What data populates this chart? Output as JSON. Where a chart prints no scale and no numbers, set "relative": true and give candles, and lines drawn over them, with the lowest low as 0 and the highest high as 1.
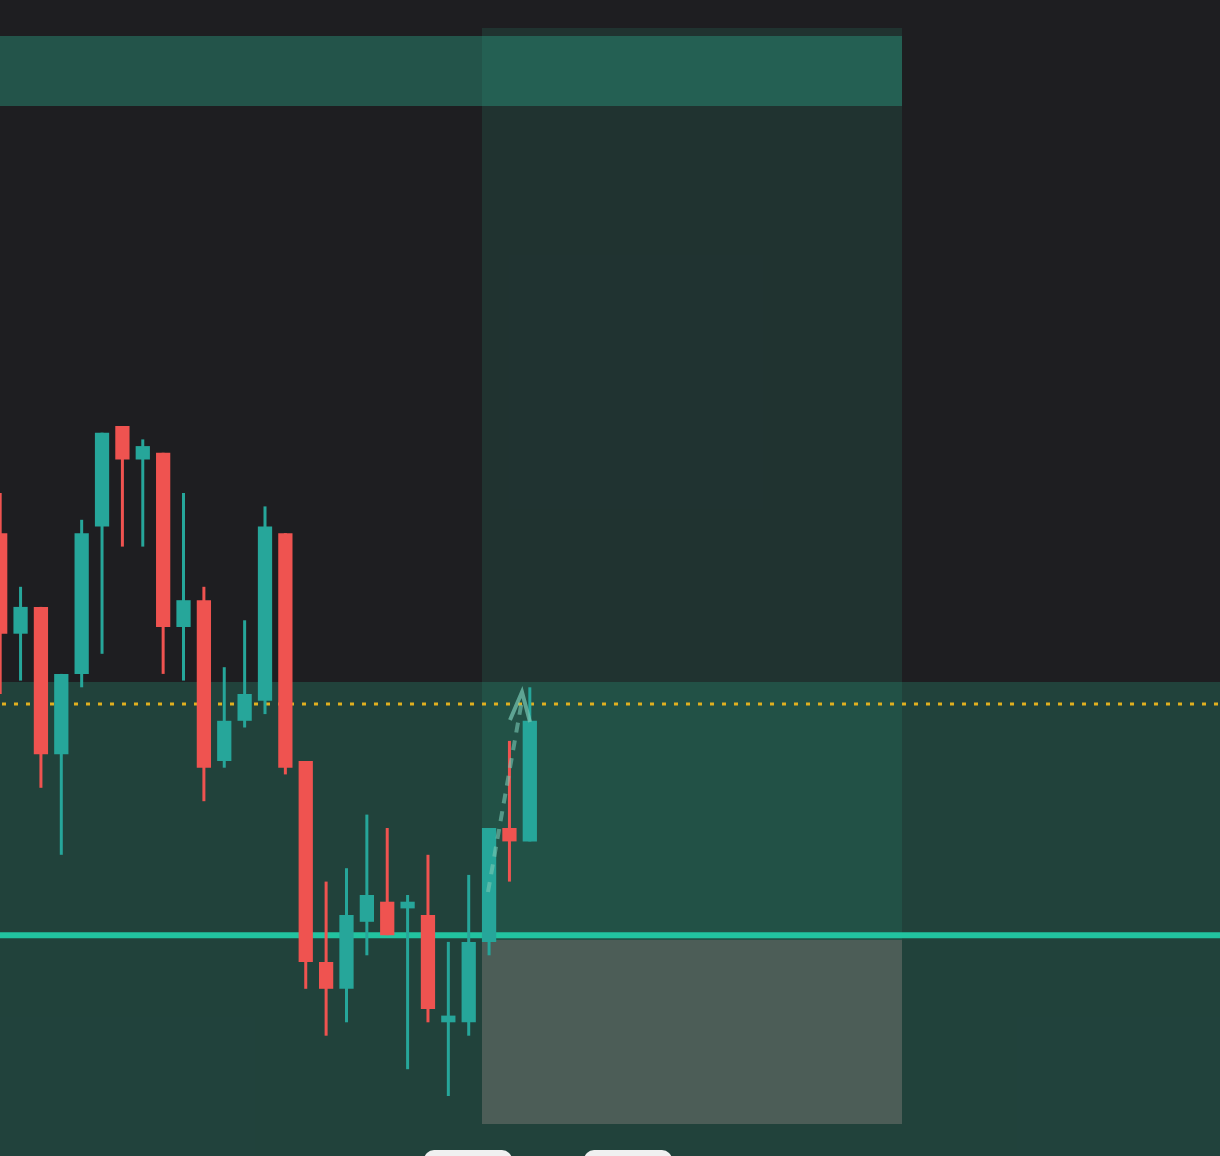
{
  "chart_data": {
    "type": "candlestick",
    "relative": true,
    "categories": [
      null,
      null,
      null,
      null,
      null,
      null,
      null,
      null,
      null,
      null,
      null,
      null,
      null,
      null,
      null,
      null,
      null,
      null,
      null,
      null,
      null,
      null,
      null,
      null,
      null,
      null,
      null
    ],
    "ohlc": [
      [
        0.84,
        0.9,
        0.6,
        0.69
      ],
      [
        0.69,
        0.76,
        0.62,
        0.73
      ],
      [
        0.73,
        0.73,
        0.46,
        0.51
      ],
      [
        0.51,
        0.63,
        0.36,
        0.63
      ],
      [
        0.63,
        0.86,
        0.61,
        0.84
      ],
      [
        0.85,
        0.99,
        0.66,
        0.99
      ],
      [
        1.0,
        1.0,
        0.82,
        0.95
      ],
      [
        0.95,
        0.98,
        0.82,
        0.97
      ],
      [
        0.96,
        0.96,
        0.63,
        0.7
      ],
      [
        0.7,
        0.9,
        0.62,
        0.74
      ],
      [
        0.74,
        0.76,
        0.44,
        0.49
      ],
      [
        0.5,
        0.64,
        0.49,
        0.56
      ],
      [
        0.56,
        0.71,
        0.55,
        0.6
      ],
      [
        0.59,
        0.88,
        0.57,
        0.85
      ],
      [
        0.84,
        0.84,
        0.48,
        0.49
      ],
      [
        0.5,
        0.5,
        0.16,
        0.2
      ],
      [
        0.2,
        0.32,
        0.09,
        0.16
      ],
      [
        0.16,
        0.34,
        0.11,
        0.27
      ],
      [
        0.26,
        0.42,
        0.21,
        0.3
      ],
      [
        0.29,
        0.4,
        0.24,
        0.24
      ],
      [
        0.28,
        0.3,
        0.04,
        0.29
      ],
      [
        0.27,
        0.36,
        0.11,
        0.13
      ],
      [
        0.11,
        0.23,
        0.0,
        0.12
      ],
      [
        0.11,
        0.33,
        0.09,
        0.23
      ],
      [
        0.23,
        0.4,
        0.21,
        0.4
      ],
      [
        0.4,
        0.53,
        0.32,
        0.38
      ],
      [
        0.38,
        0.61,
        0.38,
        0.56
      ]
    ],
    "colors": [
      "#ef5350",
      "#26a69a",
      "#ef5350",
      "#26a69a",
      "#26a69a",
      "#26a69a",
      "#ef5350",
      "#26a69a",
      "#ef5350",
      "#26a69a",
      "#ef5350",
      "#26a69a",
      "#26a69a",
      "#26a69a",
      "#ef5350",
      "#ef5350",
      "#ef5350",
      "#26a69a",
      "#26a69a",
      "#ef5350",
      "#26a69a",
      "#ef5350",
      "#26a69a",
      "#26a69a",
      "#26a69a",
      "#ef5350",
      "#26a69a"
    ],
    "ref_lines": [
      {
        "axis": "y",
        "value": 0.585,
        "color": "#e0b020",
        "line_style": "dotted"
      },
      {
        "axis": "y",
        "value": 0.24,
        "color": "#22c3a0",
        "line_style": "solid"
      }
    ],
    "legend": false
  }
}
